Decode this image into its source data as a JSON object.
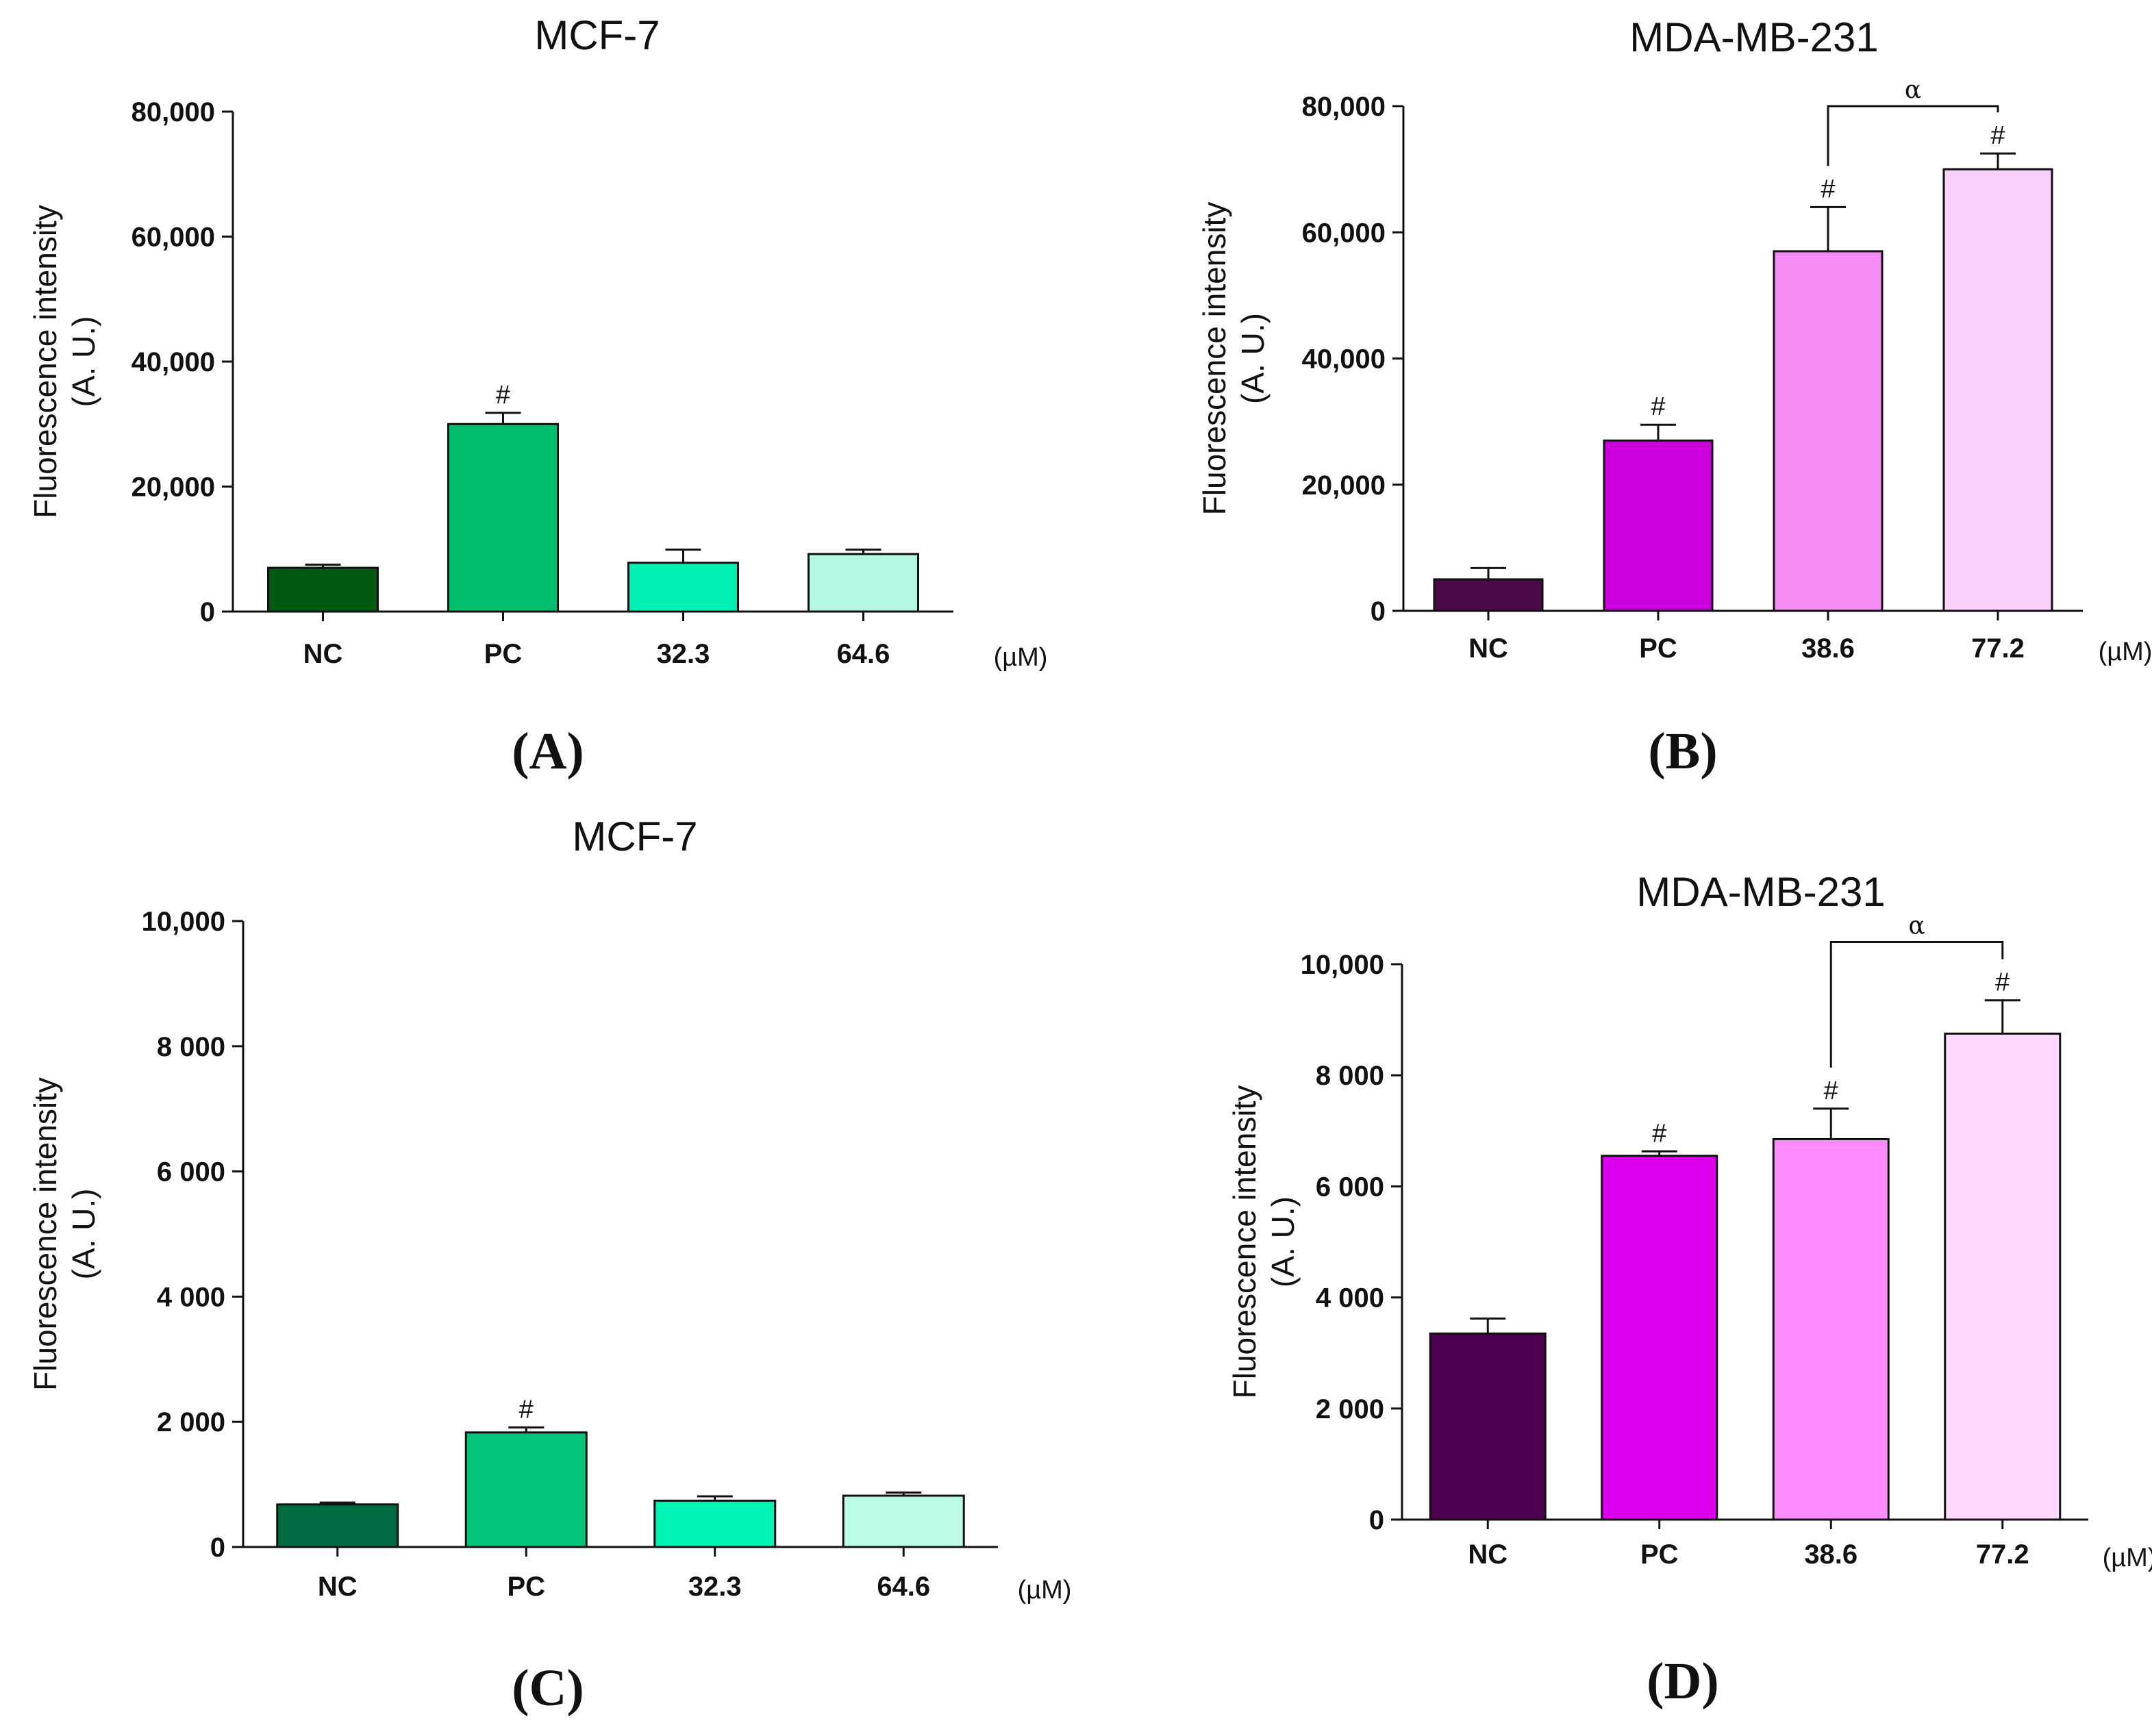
{
  "chart_data": [
    {
      "id": "A",
      "type": "bar",
      "title": "MCF-7",
      "panel_letter": "(A)",
      "ylabel_lines": [
        "Fluorescence intensity",
        "(A. U.)"
      ],
      "unit": "(µM)",
      "categories": [
        "NC",
        "PC",
        "32.3",
        "64.6"
      ],
      "values": [
        7000,
        30000,
        7800,
        9200
      ],
      "errors": [
        500,
        1800,
        2100,
        700
      ],
      "significance": [
        "",
        "#",
        "",
        ""
      ],
      "colors": [
        "#005a12",
        "#00bf6f",
        "#00f0b4",
        "#b4f7e4"
      ],
      "ylim": [
        0,
        80000
      ],
      "yticks": [
        0,
        20000,
        40000,
        60000,
        80000
      ],
      "ytick_labels": [
        "0",
        "20,000",
        "40,000",
        "60,000",
        "80,000"
      ],
      "bracket": null
    },
    {
      "id": "B",
      "type": "bar",
      "title": "MDA-MB-231",
      "panel_letter": "(B)",
      "ylabel_lines": [
        "Fluorescence intensity",
        "(A. U.)"
      ],
      "unit": "(µM)",
      "categories": [
        "NC",
        "PC",
        "38.6",
        "77.2"
      ],
      "values": [
        5000,
        27000,
        57000,
        70000
      ],
      "errors": [
        1800,
        2500,
        7000,
        2500
      ],
      "significance": [
        "",
        "#",
        "#",
        "#"
      ],
      "colors": [
        "#4a0a4a",
        "#cc00dd",
        "#f58cf5",
        "#fad0fa"
      ],
      "ylim": [
        0,
        80000
      ],
      "yticks": [
        0,
        20000,
        40000,
        60000,
        80000
      ],
      "ytick_labels": [
        "0",
        "20,000",
        "40,000",
        "60,000",
        "80,000"
      ],
      "bracket": {
        "from": 2,
        "to": 3,
        "label": "α",
        "y": 80000
      }
    },
    {
      "id": "C",
      "type": "bar",
      "title": "MCF-7",
      "panel_letter": "(C)",
      "ylabel_lines": [
        "Fluorescence intensity",
        "(A. U.)"
      ],
      "unit": "(µM)",
      "categories": [
        "NC",
        "PC",
        "32.3",
        "64.6"
      ],
      "values": [
        680,
        1830,
        740,
        820
      ],
      "errors": [
        30,
        80,
        70,
        50
      ],
      "significance": [
        "",
        "#",
        "",
        ""
      ],
      "colors": [
        "#006a40",
        "#00c47a",
        "#00f5b4",
        "#bcfbe6"
      ],
      "ylim": [
        0,
        10000
      ],
      "yticks": [
        0,
        2000,
        4000,
        6000,
        8000,
        10000
      ],
      "ytick_labels": [
        "0",
        "2 000",
        "4 000",
        "6 000",
        "8 000",
        "10,000"
      ],
      "bracket": null
    },
    {
      "id": "D",
      "type": "bar",
      "title": "MDA-MB-231",
      "panel_letter": "(D)",
      "ylabel_lines": [
        "Fluorescence intensity",
        "(A. U.)"
      ],
      "unit": "(µM)",
      "categories": [
        "NC",
        "PC",
        "38.6",
        "77.2"
      ],
      "values": [
        3350,
        6550,
        6850,
        8750
      ],
      "errors": [
        270,
        80,
        550,
        600
      ],
      "significance": [
        "",
        "#",
        "#",
        "#"
      ],
      "colors": [
        "#4d0050",
        "#dd00ee",
        "#ff8cff",
        "#ffd8ff"
      ],
      "ylim": [
        0,
        10000
      ],
      "yticks": [
        0,
        2000,
        4000,
        6000,
        8000,
        10000
      ],
      "ytick_labels": [
        "0",
        "2 000",
        "4 000",
        "6 000",
        "8 000",
        "10,000"
      ],
      "bracket": {
        "from": 2,
        "to": 3,
        "label": "α",
        "y": 10400
      }
    }
  ]
}
